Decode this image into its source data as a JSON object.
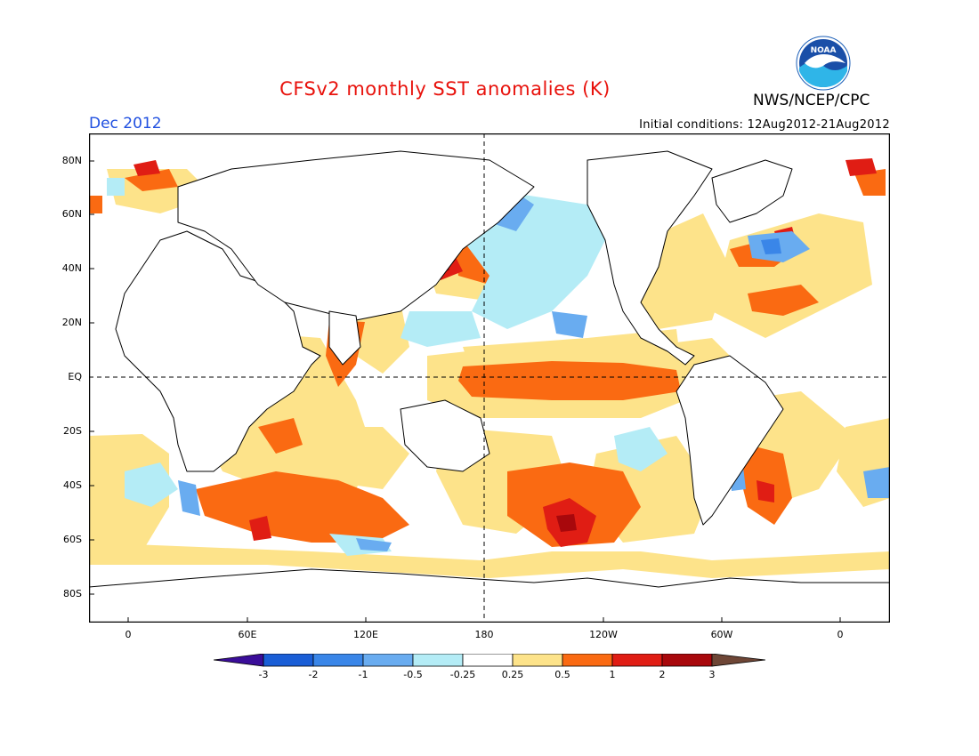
{
  "header": {
    "title": "CFSv2 monthly SST anomalies (K)",
    "agency": "NWS/NCEP/CPC",
    "logo_text": "NOAA",
    "month": "Dec 2012",
    "initial_conditions": "Initial conditions: 12Aug2012-21Aug2012"
  },
  "map": {
    "lat_labels": [
      "80N",
      "60N",
      "40N",
      "20N",
      "EQ",
      "20S",
      "40S",
      "60S",
      "80S"
    ],
    "lon_labels": [
      "0",
      "60E",
      "120E",
      "180",
      "120W",
      "60W",
      "0"
    ],
    "reference_lines": [
      "EQ",
      "180"
    ]
  },
  "colorbar": {
    "labels": [
      "-3",
      "-2",
      "-1",
      "-0.5",
      "-0.25",
      "0.25",
      "0.5",
      "1",
      "2",
      "3"
    ],
    "colors": [
      "#3a0d99",
      "#1a5ed6",
      "#3a86e8",
      "#69acf0",
      "#b4ecf6",
      "#ffffff",
      "#fde38a",
      "#fa6a12",
      "#e01d14",
      "#a8080c",
      "#6e4636"
    ]
  },
  "colors": {
    "title": "#e8120c",
    "month": "#1f4fe0",
    "pos_weak": "#fde38a",
    "pos_mid": "#fa6a12",
    "pos_strong": "#e01d14",
    "pos_max": "#a8080c",
    "neg_weak": "#b4ecf6",
    "neg_mid": "#69acf0",
    "neg_strong": "#3a86e8"
  }
}
